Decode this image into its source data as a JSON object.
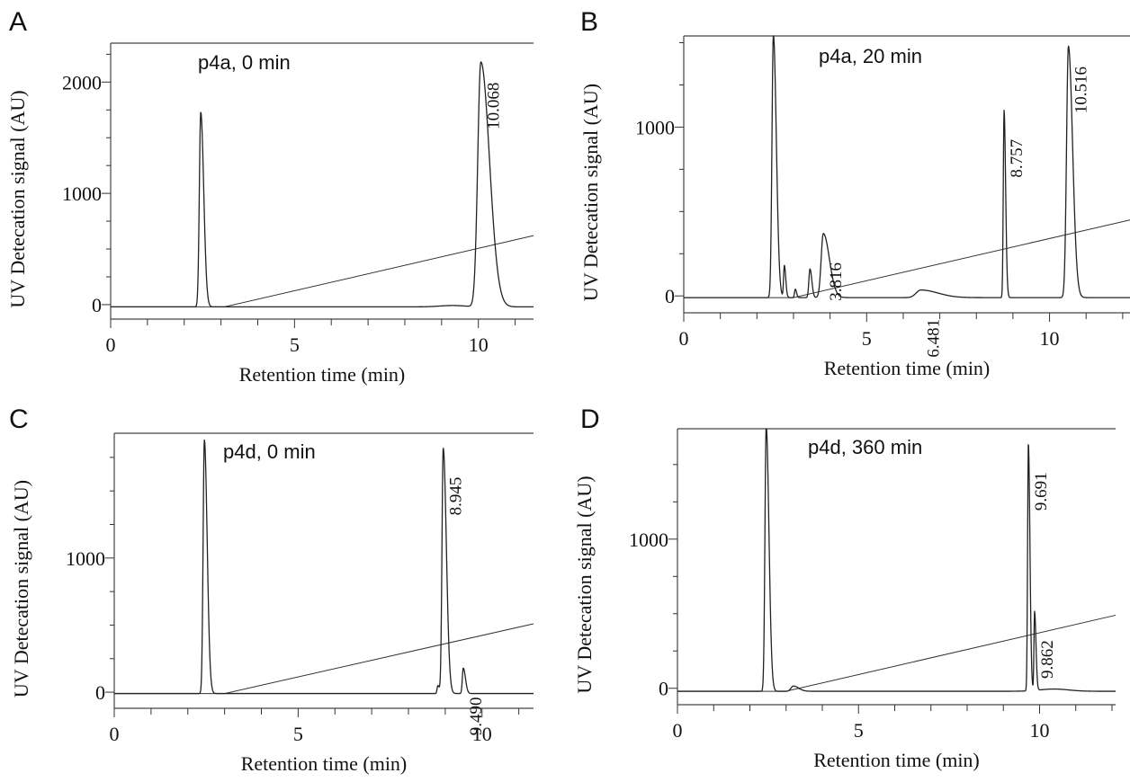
{
  "chart_data": [
    {
      "type": "line",
      "panel": "A",
      "label": "p4a, 0 min",
      "xlabel": "Retention time (min)",
      "ylabel": "UV Detecation signal (AU)",
      "xlim": [
        0,
        11.5
      ],
      "ylim": [
        -130,
        2350
      ],
      "xticks": [
        0,
        5,
        10
      ],
      "yticks": [
        0,
        1000,
        2000
      ],
      "baseline": -20,
      "gradient": {
        "x0": 3.1,
        "y0": -20,
        "x1": 11.5,
        "y1": 620
      },
      "peaks": [
        {
          "rt": 2.45,
          "height": 1750,
          "width": 0.09,
          "tail": 0.1
        },
        {
          "rt": 10.068,
          "height": 2200,
          "width": 0.2,
          "tail": 0.35
        }
      ],
      "bumps": [
        {
          "rt": 9.3,
          "height": 12,
          "width": 0.35
        }
      ],
      "peak_labels": [
        {
          "text": "10.068",
          "rt": 10.068
        }
      ]
    },
    {
      "type": "line",
      "panel": "B",
      "label": "p4a, 20 min",
      "xlabel": "Retention time (min)",
      "ylabel": "UV Detecation signal (AU)",
      "xlim": [
        0,
        12.2
      ],
      "ylim": [
        -100,
        1540
      ],
      "xticks": [
        0,
        5,
        10
      ],
      "yticks": [
        0,
        1000
      ],
      "baseline": -10,
      "gradient": {
        "x0": 3.0,
        "y0": -10,
        "x1": 12.2,
        "y1": 450
      },
      "peaks": [
        {
          "rt": 2.45,
          "height": 1560,
          "width": 0.09,
          "tail": 0.1
        },
        {
          "rt": 2.75,
          "height": 190,
          "width": 0.05,
          "tail": 0.04
        },
        {
          "rt": 3.05,
          "height": 50,
          "width": 0.05,
          "tail": 0.03
        },
        {
          "rt": 3.45,
          "height": 170,
          "width": 0.07,
          "tail": 0.05
        },
        {
          "rt": 3.816,
          "height": 380,
          "width": 0.14,
          "tail": 0.25
        },
        {
          "rt": 6.481,
          "height": 45,
          "width": 0.3,
          "tail": 0.8
        },
        {
          "rt": 8.757,
          "height": 1110,
          "width": 0.05,
          "tail": 0.05
        },
        {
          "rt": 10.516,
          "height": 1490,
          "width": 0.12,
          "tail": 0.15
        }
      ],
      "bumps": [],
      "peak_labels": [
        {
          "text": "3.816",
          "rt": 3.816
        },
        {
          "text": "6.481",
          "rt": 6.481
        },
        {
          "text": "8.757",
          "rt": 8.757
        },
        {
          "text": "10.516",
          "rt": 10.516
        }
      ]
    },
    {
      "type": "line",
      "panel": "C",
      "label": "p4d, 0 min",
      "xlabel": "Retention time (min)",
      "ylabel": "UV Detecation signal (AU)",
      "xlim": [
        0,
        11.4
      ],
      "ylim": [
        -120,
        1930
      ],
      "xticks": [
        0,
        5,
        10
      ],
      "yticks": [
        0,
        1000
      ],
      "baseline": -10,
      "gradient": {
        "x0": 3.0,
        "y0": -10,
        "x1": 11.4,
        "y1": 510
      },
      "peaks": [
        {
          "rt": 2.45,
          "height": 1890,
          "width": 0.08,
          "tail": 0.1
        },
        {
          "rt": 8.8,
          "height": 60,
          "width": 0.05,
          "tail": 0.04
        },
        {
          "rt": 8.945,
          "height": 1830,
          "width": 0.08,
          "tail": 0.12
        },
        {
          "rt": 9.49,
          "height": 190,
          "width": 0.06,
          "tail": 0.08
        }
      ],
      "bumps": [],
      "peak_labels": [
        {
          "text": "8.945",
          "rt": 8.945
        },
        {
          "text": "9.490",
          "rt": 9.49
        }
      ]
    },
    {
      "type": "line",
      "panel": "D",
      "label": "p4d, 360 min",
      "xlabel": "Retention time (min)",
      "ylabel": "UV Detecation signal (AU)",
      "xlim": [
        0,
        12.1
      ],
      "ylim": [
        -110,
        1740
      ],
      "xticks": [
        0,
        5,
        10
      ],
      "yticks": [
        0,
        1000
      ],
      "baseline": -20,
      "gradient": {
        "x0": 3.0,
        "y0": -20,
        "x1": 12.1,
        "y1": 490
      },
      "peaks": [
        {
          "rt": 2.45,
          "height": 1780,
          "width": 0.08,
          "tail": 0.1
        },
        {
          "rt": 3.2,
          "height": 35,
          "width": 0.15,
          "tail": 0.2
        },
        {
          "rt": 9.691,
          "height": 1660,
          "width": 0.05,
          "tail": 0.05
        },
        {
          "rt": 9.862,
          "height": 530,
          "width": 0.04,
          "tail": 0.05
        }
      ],
      "bumps": [
        {
          "rt": 10.4,
          "height": 15,
          "width": 0.4
        }
      ],
      "peak_labels": [
        {
          "text": "9.691",
          "rt": 9.691
        },
        {
          "text": "9.862",
          "rt": 9.862
        }
      ]
    }
  ]
}
